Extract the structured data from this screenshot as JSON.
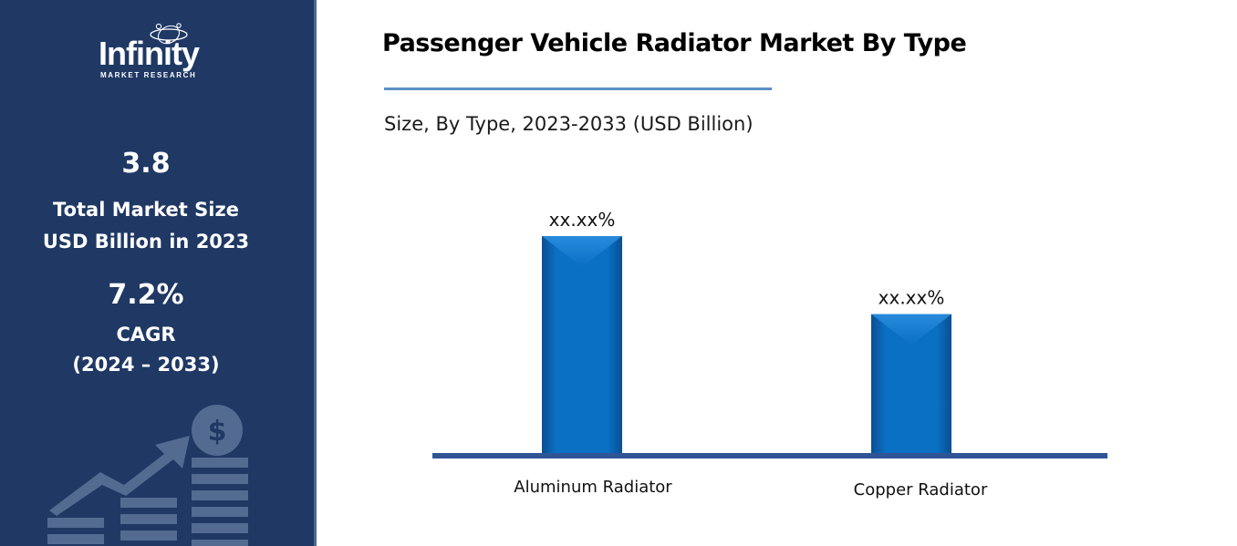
{
  "brand": {
    "name": "Infinity",
    "tagline": "MARKET RESEARCH"
  },
  "stats": {
    "market_size_value": "3.8",
    "market_size_label_line1": "Total Market Size",
    "market_size_label_line2": "USD Billion in 2023",
    "cagr_value": "7.2%",
    "cagr_label": "CAGR",
    "cagr_period": "(2024 – 2033)"
  },
  "icons": {
    "sidebar_decoration": "growth-chart-dollar-icon",
    "logo_mark": "orbit-swirl-icon"
  },
  "colors": {
    "sidebar": "#1f3864",
    "bar": "#0a6fc2",
    "baseline": "#2f5597",
    "title_rule": "#5b8fc7"
  },
  "chart_data": {
    "type": "bar",
    "title": "Passenger Vehicle Radiator Market By Type",
    "subtitle": "Size, By Type, 2023-2033 (USD Billion)",
    "categories": [
      "Aluminum Radiator",
      "Copper Radiator"
    ],
    "values": [
      100,
      64
    ],
    "data_labels": [
      "xx.xx%",
      "xx.xx%"
    ],
    "xlabel": "",
    "ylabel": "",
    "ylim": [
      0,
      100
    ],
    "grid": false,
    "legend": "none"
  }
}
